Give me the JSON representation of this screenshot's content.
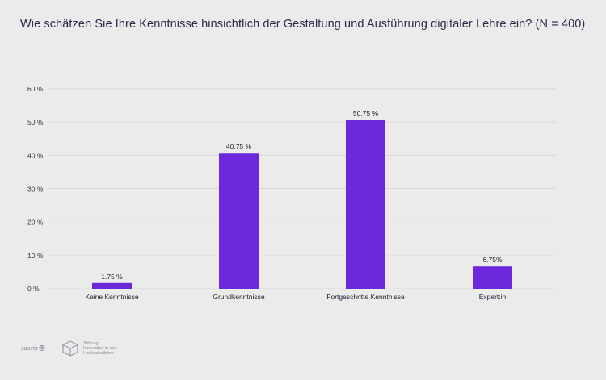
{
  "header": {
    "title": "Wie schätzen Sie Ihre Kenntnisse hinsichtlich der Gestaltung und Ausführung digitaler Lehre ein? (N = 400)"
  },
  "chart_data": {
    "type": "bar",
    "title": "Wie schätzen Sie Ihre Kenntnisse hinsichtlich der Gestaltung und Ausführung digitaler Lehre ein? (N = 400)",
    "categories": [
      "Keine Kenntnisse",
      "Grundkenntnisse",
      "Fortgeschritte Kenntnisse",
      "Expert:in"
    ],
    "values": [
      1.75,
      40.75,
      50.75,
      6.75
    ],
    "value_labels": [
      "1.75 %",
      "40.75 %",
      "50.75 %",
      "6.75%"
    ],
    "xlabel": "",
    "ylabel": "",
    "ylim": [
      0,
      60
    ],
    "yticks": [
      0,
      10,
      20,
      30,
      40,
      50,
      60
    ],
    "ytick_labels": [
      "0 %",
      "10 %",
      "20 %",
      "30 %",
      "40 %",
      "50 %",
      "60 %"
    ],
    "grid": true,
    "bar_color": "#6e28dc",
    "grid_color": "#d8d8d8"
  },
  "footer": {
    "logo1_text": "sauver",
    "logo1_mark": "⦾",
    "logo2_lines": [
      "Stiftung",
      "Innovation in der",
      "Hochschullehre"
    ]
  }
}
